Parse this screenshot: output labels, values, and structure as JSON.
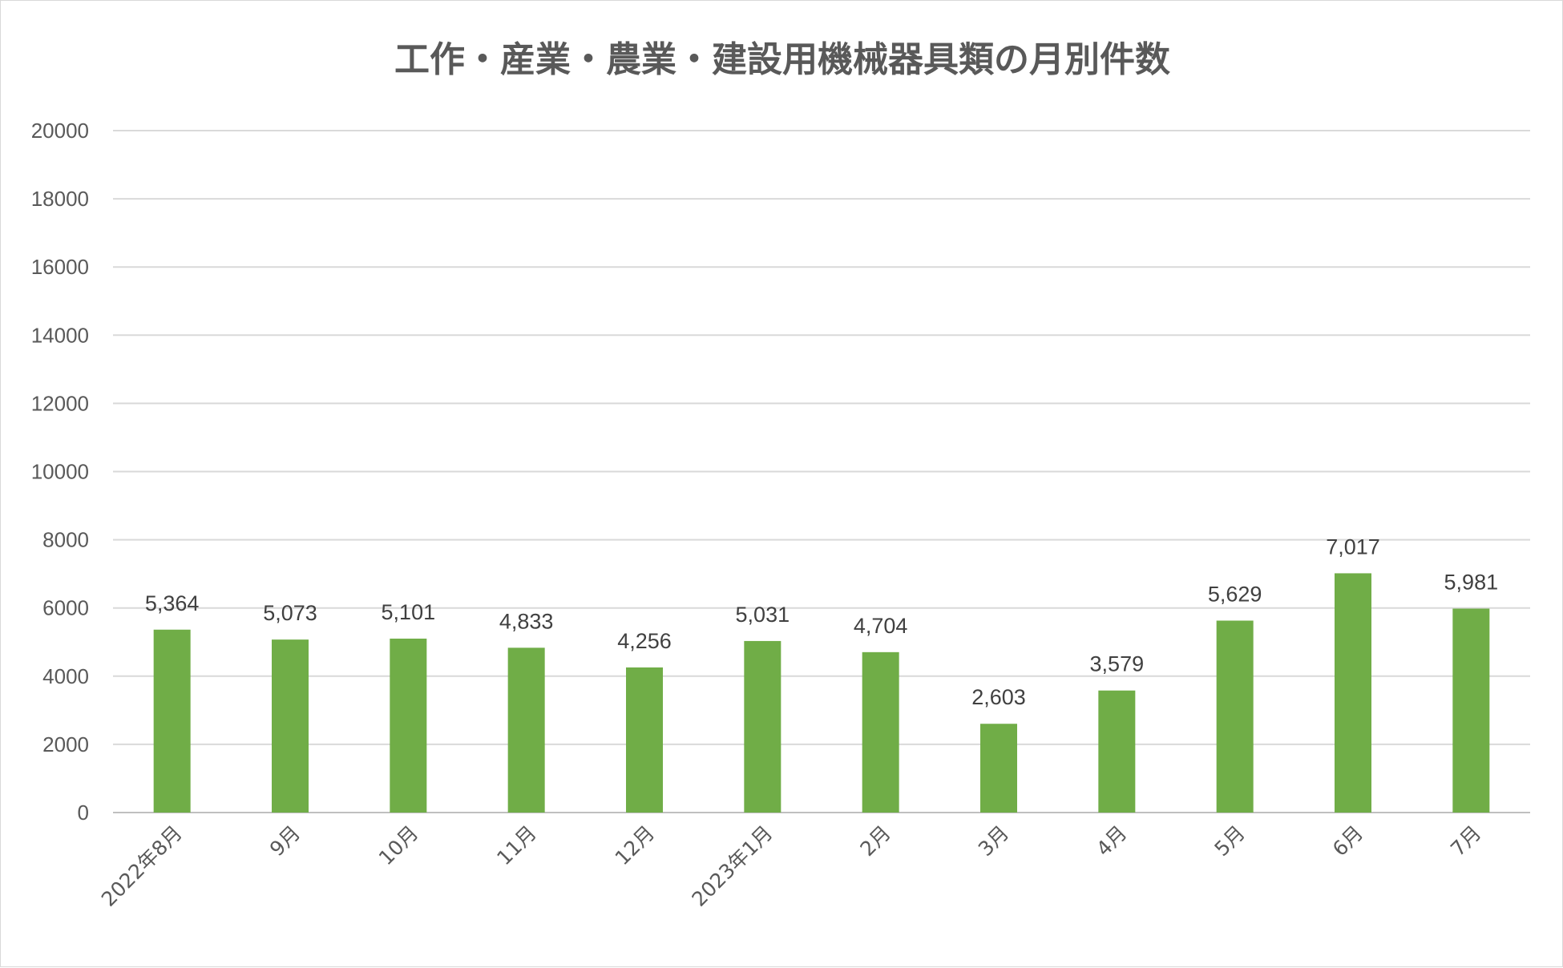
{
  "chart_data": {
    "type": "bar",
    "title": "工作・産業・農業・建設用機械器具類の月別件数",
    "xlabel": "",
    "ylabel": "",
    "categories": [
      "2022年8月",
      "9月",
      "10月",
      "11月",
      "12月",
      "2023年1月",
      "2月",
      "3月",
      "4月",
      "5月",
      "6月",
      "7月"
    ],
    "values": [
      5364,
      5073,
      5101,
      4833,
      4256,
      5031,
      4704,
      2603,
      3579,
      5629,
      7017,
      5981
    ],
    "data_labels": [
      "5,364",
      "5,073",
      "5,101",
      "4,833",
      "4,256",
      "5,031",
      "4,704",
      "2,603",
      "3,579",
      "5,629",
      "7,017",
      "5,981"
    ],
    "ylim": [
      0,
      20000
    ],
    "yticks": [
      0,
      2000,
      4000,
      6000,
      8000,
      10000,
      12000,
      14000,
      16000,
      18000,
      20000
    ],
    "ytick_labels": [
      "0",
      "2000",
      "4000",
      "6000",
      "8000",
      "10000",
      "12000",
      "14000",
      "16000",
      "18000",
      "20000"
    ],
    "grid": true,
    "legend": "none",
    "bar_color": "#70ad47"
  }
}
